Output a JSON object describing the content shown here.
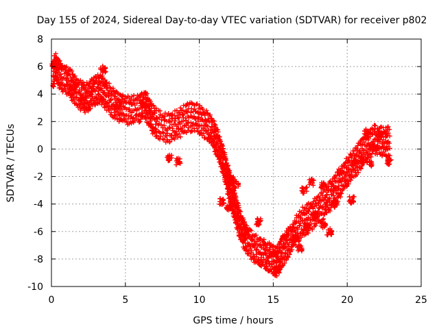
{
  "chart_data": {
    "type": "scatter",
    "title": "Day 155 of 2024, Sidereal Day-to-day VTEC variation (SDTVAR) for receiver p802",
    "xlabel": "GPS time / hours",
    "ylabel": "SDTVAR / TECUs",
    "xlim": [
      0,
      25
    ],
    "ylim": [
      -10,
      8
    ],
    "xticks": [
      0,
      5,
      10,
      15,
      20,
      25
    ],
    "yticks": [
      -10,
      -8,
      -6,
      -4,
      -2,
      0,
      2,
      4,
      6,
      8
    ],
    "grid": true,
    "marker": "plus",
    "color": "#ff0000",
    "series": [
      {
        "name": "SDTVAR",
        "trace_points": [
          [
            0.1,
            5.4
          ],
          [
            0.3,
            6.0
          ],
          [
            0.6,
            5.3
          ],
          [
            1.0,
            5.1
          ],
          [
            1.3,
            4.7
          ],
          [
            1.6,
            4.3
          ],
          [
            2.0,
            3.9
          ],
          [
            2.3,
            3.7
          ],
          [
            2.6,
            3.9
          ],
          [
            2.9,
            4.2
          ],
          [
            3.2,
            4.4
          ],
          [
            3.5,
            4.2
          ],
          [
            3.8,
            3.8
          ],
          [
            4.2,
            3.3
          ],
          [
            4.6,
            3.0
          ],
          [
            5.0,
            2.9
          ],
          [
            5.5,
            2.8
          ],
          [
            6.0,
            3.0
          ],
          [
            6.4,
            3.2
          ],
          [
            6.8,
            2.2
          ],
          [
            7.2,
            1.8
          ],
          [
            7.8,
            1.5
          ],
          [
            8.3,
            1.7
          ],
          [
            8.8,
            2.0
          ],
          [
            9.3,
            2.3
          ],
          [
            9.8,
            2.3
          ],
          [
            10.2,
            2.0
          ],
          [
            10.6,
            1.6
          ],
          [
            11.0,
            1.0
          ],
          [
            11.3,
            0.2
          ],
          [
            11.6,
            -0.8
          ],
          [
            11.9,
            -2.0
          ],
          [
            12.2,
            -3.4
          ],
          [
            12.5,
            -4.6
          ],
          [
            12.8,
            -5.6
          ],
          [
            13.1,
            -6.4
          ],
          [
            13.5,
            -7.0
          ],
          [
            13.9,
            -7.4
          ],
          [
            14.3,
            -7.6
          ],
          [
            14.6,
            -7.8
          ],
          [
            14.9,
            -8.0
          ],
          [
            15.2,
            -8.2
          ],
          [
            15.5,
            -7.8
          ],
          [
            15.8,
            -7.2
          ],
          [
            16.2,
            -6.5
          ],
          [
            16.6,
            -5.8
          ],
          [
            17.0,
            -5.3
          ],
          [
            17.4,
            -5.0
          ],
          [
            17.8,
            -4.6
          ],
          [
            18.2,
            -4.3
          ],
          [
            18.6,
            -3.8
          ],
          [
            19.0,
            -3.2
          ],
          [
            19.4,
            -2.6
          ],
          [
            19.8,
            -2.0
          ],
          [
            20.2,
            -1.4
          ],
          [
            20.6,
            -0.9
          ],
          [
            21.0,
            -0.3
          ],
          [
            21.4,
            0.3
          ],
          [
            21.8,
            0.7
          ],
          [
            22.2,
            0.6
          ],
          [
            22.6,
            0.5
          ],
          [
            22.9,
            0.6
          ]
        ],
        "parallel_offsets": [
          0,
          0.5,
          -0.5,
          0.9,
          -0.9
        ]
      }
    ],
    "scatter_clusters": [
      [
        0.2,
        6.2
      ],
      [
        0.5,
        6.0
      ],
      [
        1.5,
        4.5
      ],
      [
        2.1,
        3.5
      ],
      [
        3.5,
        5.8
      ],
      [
        4.5,
        3.2
      ],
      [
        6.2,
        3.3
      ],
      [
        8.0,
        -0.6
      ],
      [
        8.6,
        -0.9
      ],
      [
        11.5,
        -3.8
      ],
      [
        12.0,
        -4.3
      ],
      [
        13.2,
        -6.0
      ],
      [
        14.0,
        -5.3
      ],
      [
        15.3,
        -8.8
      ],
      [
        15.7,
        -6.5
      ],
      [
        16.5,
        -6.5
      ],
      [
        17.2,
        -5.7
      ],
      [
        17.8,
        -4.8
      ],
      [
        18.4,
        -5.5
      ],
      [
        18.8,
        -6.0
      ],
      [
        17.1,
        -3.0
      ],
      [
        17.6,
        -2.4
      ],
      [
        18.4,
        -2.7
      ],
      [
        19.2,
        -4.0
      ],
      [
        20.3,
        -3.7
      ],
      [
        20.5,
        -0.9
      ],
      [
        21.0,
        -0.8
      ],
      [
        21.5,
        -1.1
      ],
      [
        21.9,
        0.1
      ],
      [
        22.8,
        -0.9
      ],
      [
        22.2,
        1.1
      ],
      [
        21.3,
        1.2
      ],
      [
        12.2,
        -2.2
      ],
      [
        12.5,
        -2.6
      ],
      [
        16.8,
        -7.2
      ],
      [
        15.2,
        -7.6
      ]
    ]
  }
}
